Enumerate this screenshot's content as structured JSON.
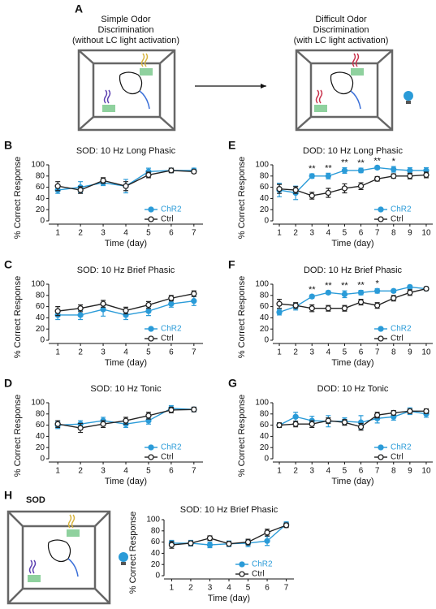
{
  "panel_a": {
    "label": "A",
    "left": [
      "Simple Odor",
      "Discrimination",
      "(without LC light activation)"
    ],
    "right": [
      "Difficult Odor",
      "Discrimination",
      "(with LC light activation)"
    ]
  },
  "panel_h": {
    "label": "H",
    "text": "SOD"
  },
  "chart_data": [
    {
      "type": "line",
      "panel": "B",
      "title": "SOD: 10 Hz Long Phasic",
      "xlabel": "Time (day)",
      "ylabel": "% Correct Response",
      "x": [
        1,
        2,
        3,
        4,
        5,
        6,
        7
      ],
      "xlim": [
        0.6,
        7.4
      ],
      "xticks": [
        1,
        2,
        3,
        4,
        5,
        6,
        7
      ],
      "ylim": [
        0,
        100
      ],
      "yticks": [
        0,
        20,
        40,
        60,
        80,
        100
      ],
      "legend": "lower right",
      "series": [
        {
          "name": "ChR2",
          "color": "#2a9bd8",
          "values": [
            55,
            60,
            68,
            62,
            88,
            90,
            90
          ],
          "errors": [
            6,
            10,
            5,
            12,
            6,
            4,
            4
          ]
        },
        {
          "name": "Ctrl",
          "color": "#222222",
          "values": [
            62,
            55,
            72,
            62,
            82,
            90,
            88
          ],
          "errors": [
            8,
            6,
            5,
            8,
            5,
            4,
            3
          ]
        }
      ]
    },
    {
      "type": "line",
      "panel": "C",
      "title": "SOD: 10 Hz Brief Phasic",
      "xlabel": "Time (day)",
      "ylabel": "% Correct Response",
      "x": [
        1,
        2,
        3,
        4,
        5,
        6,
        7
      ],
      "xlim": [
        0.6,
        7.4
      ],
      "xticks": [
        1,
        2,
        3,
        4,
        5,
        6,
        7
      ],
      "ylim": [
        0,
        100
      ],
      "yticks": [
        0,
        20,
        40,
        60,
        80,
        100
      ],
      "legend": "lower right",
      "series": [
        {
          "name": "ChR2",
          "color": "#2a9bd8",
          "values": [
            45,
            45,
            55,
            45,
            52,
            65,
            70
          ],
          "errors": [
            8,
            8,
            12,
            8,
            8,
            6,
            8
          ]
        },
        {
          "name": "Ctrl",
          "color": "#222222",
          "values": [
            52,
            57,
            65,
            53,
            63,
            75,
            83
          ],
          "errors": [
            8,
            6,
            6,
            6,
            6,
            5,
            5
          ]
        }
      ]
    },
    {
      "type": "line",
      "panel": "D",
      "title": "SOD: 10 Hz Tonic",
      "xlabel": "Time (day)",
      "ylabel": "% Correct Response",
      "x": [
        1,
        2,
        3,
        4,
        5,
        6,
        7
      ],
      "xlim": [
        0.6,
        7.4
      ],
      "xticks": [
        1,
        2,
        3,
        4,
        5,
        6,
        7
      ],
      "ylim": [
        0,
        100
      ],
      "yticks": [
        0,
        20,
        40,
        60,
        80,
        100
      ],
      "legend": "lower right",
      "series": [
        {
          "name": "ChR2",
          "color": "#2a9bd8",
          "values": [
            60,
            62,
            68,
            62,
            68,
            90,
            88
          ],
          "errors": [
            6,
            6,
            6,
            6,
            6,
            5,
            4
          ]
        },
        {
          "name": "Ctrl",
          "color": "#222222",
          "values": [
            62,
            55,
            62,
            68,
            77,
            87,
            88
          ],
          "errors": [
            6,
            8,
            6,
            6,
            6,
            5,
            4
          ]
        }
      ]
    },
    {
      "type": "line",
      "panel": "E",
      "title": "DOD: 10 Hz Long Phasic",
      "xlabel": "Time (day)",
      "ylabel": "% Correct Response",
      "x": [
        1,
        2,
        3,
        4,
        5,
        6,
        7,
        8,
        9,
        10
      ],
      "xlim": [
        0.6,
        10.4
      ],
      "xticks": [
        1,
        2,
        3,
        4,
        5,
        6,
        7,
        8,
        9,
        10
      ],
      "ylim": [
        0,
        100
      ],
      "yticks": [
        0,
        20,
        40,
        60,
        80,
        100
      ],
      "legend": "lower right",
      "series": [
        {
          "name": "ChR2",
          "color": "#2a9bd8",
          "values": [
            55,
            50,
            80,
            80,
            90,
            90,
            95,
            92,
            90,
            90
          ],
          "errors": [
            12,
            12,
            4,
            5,
            5,
            4,
            3,
            5,
            5,
            5
          ]
        },
        {
          "name": "Ctrl",
          "color": "#222222",
          "values": [
            57,
            55,
            45,
            50,
            58,
            62,
            75,
            80,
            80,
            82
          ],
          "errors": [
            8,
            6,
            6,
            8,
            8,
            6,
            4,
            4,
            5,
            5
          ]
        }
      ],
      "annotations": [
        {
          "x": 3,
          "text": "**"
        },
        {
          "x": 4,
          "text": "**"
        },
        {
          "x": 5,
          "text": "**"
        },
        {
          "x": 6,
          "text": "**"
        },
        {
          "x": 7,
          "text": "**"
        },
        {
          "x": 8,
          "text": "*"
        }
      ]
    },
    {
      "type": "line",
      "panel": "F",
      "title": "DOD: 10 Hz Brief Phasic",
      "xlabel": "Time (day)",
      "ylabel": "% Correct Response",
      "x": [
        1,
        2,
        3,
        4,
        5,
        6,
        7,
        8,
        9,
        10
      ],
      "xlim": [
        0.6,
        10.4
      ],
      "xticks": [
        1,
        2,
        3,
        4,
        5,
        6,
        7,
        8,
        9,
        10
      ],
      "ylim": [
        0,
        100
      ],
      "yticks": [
        0,
        20,
        40,
        60,
        80,
        100
      ],
      "legend": "lower right",
      "series": [
        {
          "name": "ChR2",
          "color": "#2a9bd8",
          "values": [
            50,
            60,
            78,
            85,
            82,
            85,
            88,
            88,
            95,
            92
          ],
          "errors": [
            5,
            6,
            3,
            3,
            6,
            4,
            4,
            3,
            3,
            3
          ]
        },
        {
          "name": "Ctrl",
          "color": "#222222",
          "values": [
            65,
            62,
            57,
            57,
            57,
            68,
            62,
            75,
            85,
            92
          ],
          "errors": [
            8,
            5,
            6,
            5,
            5,
            5,
            5,
            5,
            5,
            3
          ]
        }
      ],
      "annotations": [
        {
          "x": 3,
          "text": "**"
        },
        {
          "x": 4,
          "text": "**"
        },
        {
          "x": 5,
          "text": "**"
        },
        {
          "x": 6,
          "text": "**"
        },
        {
          "x": 7,
          "text": "*"
        }
      ]
    },
    {
      "type": "line",
      "panel": "G",
      "title": "DOD: 10 Hz Tonic",
      "xlabel": "Time (day)",
      "ylabel": "% Correct Response",
      "x": [
        1,
        2,
        3,
        4,
        5,
        6,
        7,
        8,
        9,
        10
      ],
      "xlim": [
        0.6,
        10.4
      ],
      "xticks": [
        1,
        2,
        3,
        4,
        5,
        6,
        7,
        8,
        9,
        10
      ],
      "ylim": [
        0,
        100
      ],
      "yticks": [
        0,
        20,
        40,
        60,
        80,
        100
      ],
      "legend": "lower right",
      "series": [
        {
          "name": "ChR2",
          "color": "#2a9bd8",
          "values": [
            60,
            75,
            68,
            67,
            67,
            65,
            72,
            75,
            85,
            80
          ],
          "errors": [
            4,
            8,
            8,
            10,
            6,
            12,
            8,
            6,
            6,
            6
          ]
        },
        {
          "name": "Ctrl",
          "color": "#222222",
          "values": [
            60,
            62,
            62,
            68,
            65,
            57,
            78,
            82,
            85,
            85
          ],
          "errors": [
            4,
            5,
            6,
            5,
            5,
            6,
            5,
            4,
            4,
            4
          ]
        }
      ]
    },
    {
      "type": "line",
      "title": "SOD: 10 Hz Brief Phasic",
      "xlabel": "Time (day)",
      "ylabel": "% Correct Response",
      "x": [
        1,
        2,
        3,
        4,
        5,
        6,
        7
      ],
      "xlim": [
        0.6,
        7.4
      ],
      "xticks": [
        1,
        2,
        3,
        4,
        5,
        6,
        7
      ],
      "ylim": [
        0,
        100
      ],
      "yticks": [
        0,
        20,
        40,
        60,
        80,
        100
      ],
      "legend": "lower right",
      "series": [
        {
          "name": "ChR2",
          "color": "#2a9bd8",
          "values": [
            58,
            58,
            55,
            57,
            58,
            62,
            92
          ],
          "errors": [
            5,
            5,
            5,
            5,
            6,
            8,
            4
          ]
        },
        {
          "name": "Ctrl",
          "color": "#222222",
          "values": [
            55,
            58,
            67,
            57,
            60,
            77,
            90
          ],
          "errors": [
            6,
            4,
            4,
            4,
            5,
            6,
            4
          ]
        }
      ]
    }
  ]
}
